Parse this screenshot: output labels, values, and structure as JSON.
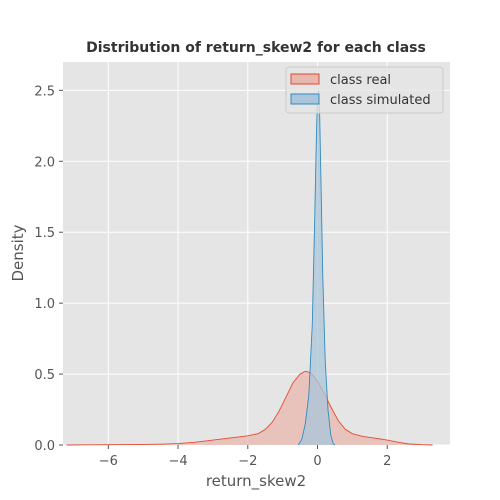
{
  "chart_data": {
    "type": "area",
    "title": "Distribution of return_skew2 for each class",
    "xlabel": "return_skew2",
    "ylabel": "Density",
    "xlim": [
      -7.3,
      3.8
    ],
    "ylim": [
      0,
      2.7
    ],
    "xticks": [
      -6,
      -4,
      -2,
      0,
      2
    ],
    "yticks": [
      0.0,
      0.5,
      1.0,
      1.5,
      2.0,
      2.5
    ],
    "grid": true,
    "legend_position": "upper-right",
    "background": "#e5e5e5",
    "series": [
      {
        "name": "class real",
        "color": "#e24a33",
        "fill": "#e8b7ad",
        "points": [
          [
            -7.2,
            0.0
          ],
          [
            -6.5,
            0.001
          ],
          [
            -6.0,
            0.002
          ],
          [
            -5.0,
            0.004
          ],
          [
            -4.5,
            0.006
          ],
          [
            -4.0,
            0.01
          ],
          [
            -3.5,
            0.02
          ],
          [
            -3.0,
            0.035
          ],
          [
            -2.5,
            0.05
          ],
          [
            -2.0,
            0.065
          ],
          [
            -1.7,
            0.08
          ],
          [
            -1.5,
            0.11
          ],
          [
            -1.3,
            0.16
          ],
          [
            -1.1,
            0.24
          ],
          [
            -0.9,
            0.34
          ],
          [
            -0.7,
            0.44
          ],
          [
            -0.5,
            0.5
          ],
          [
            -0.35,
            0.52
          ],
          [
            -0.2,
            0.51
          ],
          [
            0.0,
            0.45
          ],
          [
            0.2,
            0.36
          ],
          [
            0.4,
            0.26
          ],
          [
            0.6,
            0.17
          ],
          [
            0.8,
            0.11
          ],
          [
            1.0,
            0.08
          ],
          [
            1.3,
            0.06
          ],
          [
            1.6,
            0.05
          ],
          [
            2.0,
            0.035
          ],
          [
            2.3,
            0.02
          ],
          [
            2.6,
            0.008
          ],
          [
            3.0,
            0.002
          ],
          [
            3.3,
            0.0
          ]
        ]
      },
      {
        "name": "class simulated",
        "color": "#348abd",
        "fill": "#a9c6da",
        "points": [
          [
            -0.55,
            0.0
          ],
          [
            -0.45,
            0.04
          ],
          [
            -0.35,
            0.15
          ],
          [
            -0.25,
            0.35
          ],
          [
            -0.15,
            0.85
          ],
          [
            -0.08,
            1.6
          ],
          [
            -0.03,
            2.2
          ],
          [
            0.0,
            2.45
          ],
          [
            0.03,
            2.5
          ],
          [
            0.06,
            2.35
          ],
          [
            0.1,
            1.85
          ],
          [
            0.15,
            1.2
          ],
          [
            0.22,
            0.6
          ],
          [
            0.3,
            0.25
          ],
          [
            0.38,
            0.07
          ],
          [
            0.45,
            0.01
          ],
          [
            0.5,
            0.0
          ]
        ]
      }
    ]
  }
}
